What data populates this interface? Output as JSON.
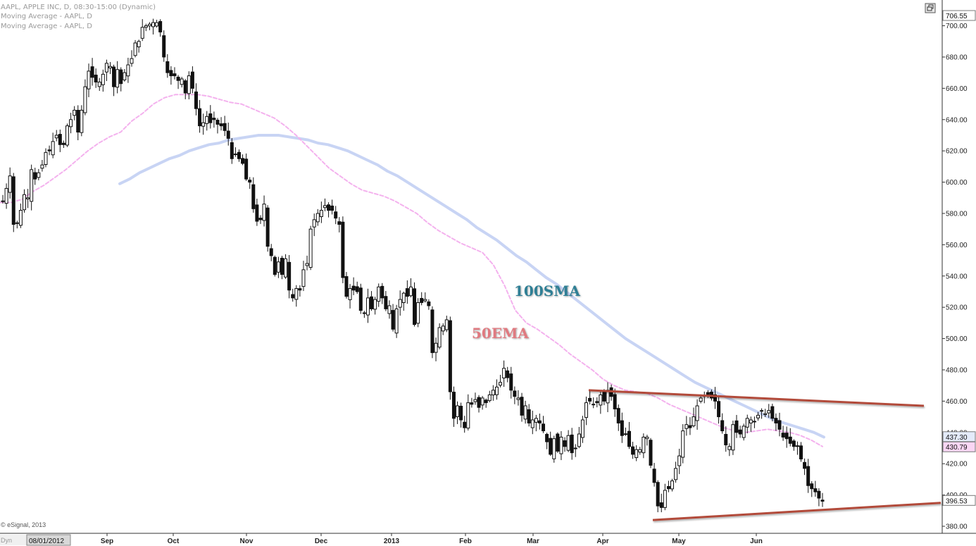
{
  "header": {
    "symbol_line": "AAPL, APPLE INC, D, 08:30-15:00 (Dynamic)",
    "study1": "Moving Average - AAPL, D",
    "study2": "Moving Average - AAPL, D"
  },
  "footer": {
    "copyright": "© eSignal, 2013",
    "mode_label": "Dyn",
    "date_box": "08/01/2012"
  },
  "toolbar": {
    "restore_icon": "window-restore-icon"
  },
  "colors": {
    "candle": "#111111",
    "sma100": "#c8d4f4",
    "ema50": "#f4b2ee",
    "trendline": "#b24a3a",
    "label_100sma": "#2f7f95",
    "label_50ema": "#e07a80",
    "badge_last": "#ffffff",
    "badge_sma": "#e4ebfa",
    "badge_ema": "#f9d6f4"
  },
  "chart_data": {
    "type": "candlestick",
    "title": "AAPL, APPLE INC, D",
    "ylim": [
      380,
      706.55
    ],
    "y_ticks": [
      "700.00",
      "680.00",
      "660.00",
      "640.00",
      "620.00",
      "600.00",
      "580.00",
      "560.00",
      "540.00",
      "520.00",
      "500.00",
      "480.00",
      "460.00",
      "440.00",
      "420.00",
      "400.00",
      "380.00"
    ],
    "x_ticks": [
      "Sep",
      "Oct",
      "Nov",
      "Dec",
      "2013",
      "Feb",
      "Mar",
      "Apr",
      "May",
      "Jun"
    ],
    "price_labels": {
      "top": "706.55",
      "sma100_last": "437.30",
      "ema50_last": "430.79",
      "last_close": "396.53"
    },
    "annotations": [
      {
        "text": "100SMA",
        "series": "sma100"
      },
      {
        "text": "50EMA",
        "series": "ema50"
      }
    ],
    "series": [
      {
        "type": "candles",
        "close": [
          588,
          596,
          604,
          573,
          574,
          582,
          592,
          590,
          608,
          602,
          606,
          611,
          619,
          620,
          626,
          630,
          624,
          624,
          636,
          640,
          646,
          632,
          646,
          661,
          671,
          667,
          664,
          664,
          669,
          676,
          674,
          661,
          672,
          663,
          670,
          675,
          679,
          689,
          690,
          699,
          700,
          701,
          702,
          702,
          696,
          680,
          670,
          668,
          668,
          665,
          666,
          657,
          668,
          660,
          647,
          636,
          638,
          642,
          638,
          640,
          637,
          636,
          633,
          628,
          615,
          618,
          615,
          612,
          602,
          600,
          583,
          575,
          576,
          586,
          559,
          553,
          541,
          549,
          541,
          551,
          531,
          526,
          532,
          531,
          544,
          548,
          570,
          576,
          580,
          582,
          585,
          582,
          582,
          577,
          573,
          539,
          527,
          532,
          531,
          530,
          518,
          516,
          526,
          519,
          525,
          533,
          526,
          519,
          521,
          506,
          519,
          525,
          529,
          527,
          533,
          509,
          523,
          523,
          525,
          521,
          491,
          497,
          507,
          508,
          512,
          466,
          449,
          457,
          448,
          443,
          459,
          458,
          461,
          456,
          462,
          459,
          464,
          467,
          469,
          472,
          481,
          475,
          467,
          463,
          462,
          451,
          457,
          446,
          448,
          449,
          446,
          441,
          434,
          426,
          436,
          428,
          437,
          431,
          438,
          427,
          430,
          439,
          448,
          459,
          460,
          458,
          459,
          464,
          460,
          467,
          463,
          455,
          446,
          438,
          439,
          431,
          426,
          429,
          429,
          437,
          437,
          419,
          408,
          393,
          392,
          403,
          404,
          409,
          417,
          425,
          441,
          445,
          443,
          450,
          457,
          462,
          463,
          464,
          462,
          460,
          450,
          441,
          432,
          431,
          445,
          440,
          439,
          444,
          449,
          448,
          447,
          451,
          454,
          452,
          454,
          449,
          446,
          442,
          437,
          436,
          433,
          431,
          431,
          423,
          417,
          406,
          404,
          402,
          398,
          396
        ]
      },
      {
        "name": "100SMA",
        "type": "line",
        "values": [
          599,
          602,
          606,
          609,
          612,
          615,
          617,
          620,
          622,
          624,
          625,
          627,
          628,
          629,
          630,
          630,
          630,
          629,
          628,
          627,
          625,
          624,
          622,
          620,
          617,
          614,
          611,
          607,
          604,
          600,
          596,
          592,
          588,
          584,
          580,
          576,
          571,
          567,
          563,
          558,
          553,
          549,
          544,
          539,
          535,
          530,
          525,
          520,
          515,
          510,
          505,
          500,
          496,
          492,
          488,
          484,
          480,
          476,
          472,
          469,
          466,
          463,
          460,
          457,
          454,
          451,
          448,
          446,
          444,
          442,
          440,
          437
        ]
      },
      {
        "name": "50EMA",
        "type": "line",
        "values": [
          587,
          587,
          589,
          594,
          598,
          603,
          608,
          614,
          620,
          625,
          629,
          632,
          639,
          644,
          650,
          654,
          656,
          656,
          656,
          655,
          653,
          651,
          650,
          647,
          644,
          641,
          636,
          630,
          623,
          616,
          609,
          604,
          599,
          595,
          593,
          591,
          588,
          584,
          580,
          574,
          569,
          565,
          561,
          558,
          555,
          547,
          534,
          518,
          510,
          506,
          501,
          496,
          490,
          485,
          480,
          474,
          470,
          467,
          466,
          465,
          462,
          458,
          455,
          452,
          449,
          446,
          443,
          441,
          440,
          441,
          442,
          441,
          440,
          438,
          435,
          431
        ]
      },
      {
        "name": "resistance",
        "type": "trendline",
        "points": [
          [
            0.6,
            467
          ],
          [
            1.0,
            457
          ]
        ]
      },
      {
        "name": "support",
        "type": "trendline",
        "points": [
          [
            0.67,
            384
          ],
          [
            1.0,
            395
          ]
        ]
      }
    ]
  }
}
